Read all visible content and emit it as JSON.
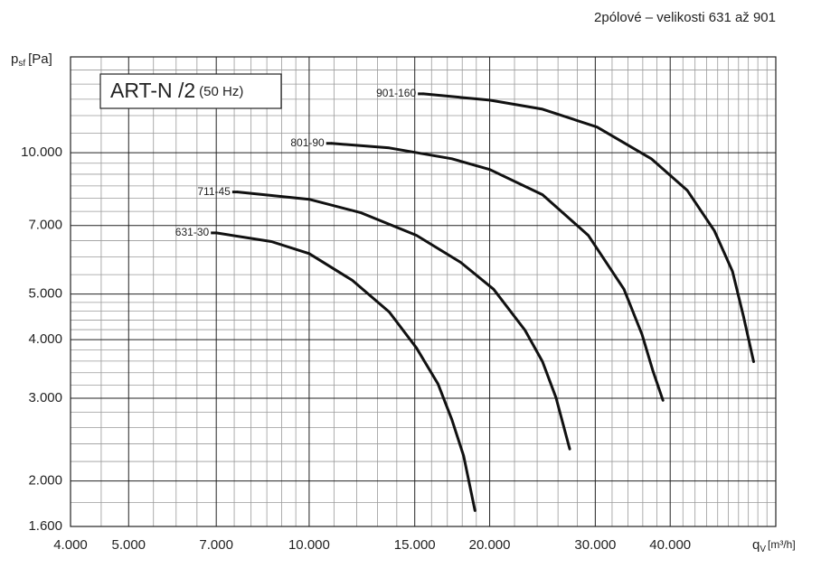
{
  "chart_data": {
    "type": "line",
    "header": "2pólové – velikosti 631 až 901",
    "title": "ART-N /2",
    "subtitle": "(50 Hz)",
    "y_label": {
      "symbol": "p",
      "subscript": "sf",
      "unit": "[Pa]"
    },
    "x_label": {
      "symbol": "q",
      "subscript": "V",
      "unit": "[m³/h]"
    },
    "xscale": "log",
    "yscale": "log",
    "xlim": [
      4000,
      60000
    ],
    "ylim": [
      1600,
      16000
    ],
    "xticks": [
      {
        "value": 4000,
        "label": "4.000"
      },
      {
        "value": 5000,
        "label": "5.000"
      },
      {
        "value": 7000,
        "label": "7.000"
      },
      {
        "value": 10000,
        "label": "10.000"
      },
      {
        "value": 15000,
        "label": "15.000"
      },
      {
        "value": 20000,
        "label": "20.000"
      },
      {
        "value": 30000,
        "label": "30.000"
      },
      {
        "value": 40000,
        "label": "40.000"
      }
    ],
    "yticks": [
      {
        "value": 1600,
        "label": "1.600"
      },
      {
        "value": 2000,
        "label": "2.000"
      },
      {
        "value": 3000,
        "label": "3.000"
      },
      {
        "value": 4000,
        "label": "4.000"
      },
      {
        "value": 5000,
        "label": "5.000"
      },
      {
        "value": 7000,
        "label": "7.000"
      },
      {
        "value": 10000,
        "label": "10.000"
      }
    ],
    "x_minor_ticks": [
      4500,
      5500,
      6000,
      6500,
      7500,
      8000,
      8500,
      9000,
      9500,
      11000,
      12000,
      13000,
      14000,
      16000,
      17000,
      18000,
      19000,
      22000,
      24000,
      26000,
      28000,
      32000,
      34000,
      36000,
      38000,
      42000,
      44000,
      46000,
      48000,
      50000,
      52000,
      54000,
      56000,
      58000
    ],
    "y_minor_ticks": [
      1800,
      2200,
      2400,
      2600,
      2800,
      3200,
      3400,
      3600,
      3800,
      4200,
      4400,
      4600,
      4800,
      5500,
      6000,
      6500,
      7500,
      8000,
      8500,
      9000,
      9500,
      11000,
      12000,
      13000,
      14000,
      15000
    ],
    "grid": true,
    "series": [
      {
        "name": "631-30",
        "color": "#111111",
        "x": [
          7000,
          8650,
          10000,
          11800,
          13600,
          15100,
          16400,
          17300,
          18100,
          18900
        ],
        "values": [
          6750,
          6470,
          6100,
          5350,
          4580,
          3840,
          3220,
          2700,
          2260,
          1730
        ]
      },
      {
        "name": "711-45",
        "color": "#111111",
        "x": [
          7600,
          10000,
          12200,
          15100,
          17900,
          20300,
          22900,
          24500,
          25800,
          27200
        ],
        "values": [
          8250,
          7960,
          7450,
          6670,
          5840,
          5120,
          4190,
          3590,
          3010,
          2340
        ]
      },
      {
        "name": "801-90",
        "color": "#111111",
        "x": [
          10900,
          13600,
          17300,
          20000,
          24500,
          29200,
          33500,
          35900,
          37400,
          38900
        ],
        "values": [
          10470,
          10240,
          9710,
          9210,
          8140,
          6670,
          5120,
          4100,
          3440,
          2970
        ]
      },
      {
        "name": "901-160",
        "color": "#111111",
        "x": [
          15500,
          20000,
          24500,
          30200,
          37200,
          42700,
          47400,
          50800,
          53000,
          55100
        ],
        "values": [
          13350,
          12940,
          12380,
          11340,
          9710,
          8320,
          6820,
          5590,
          4480,
          3590
        ]
      }
    ]
  }
}
